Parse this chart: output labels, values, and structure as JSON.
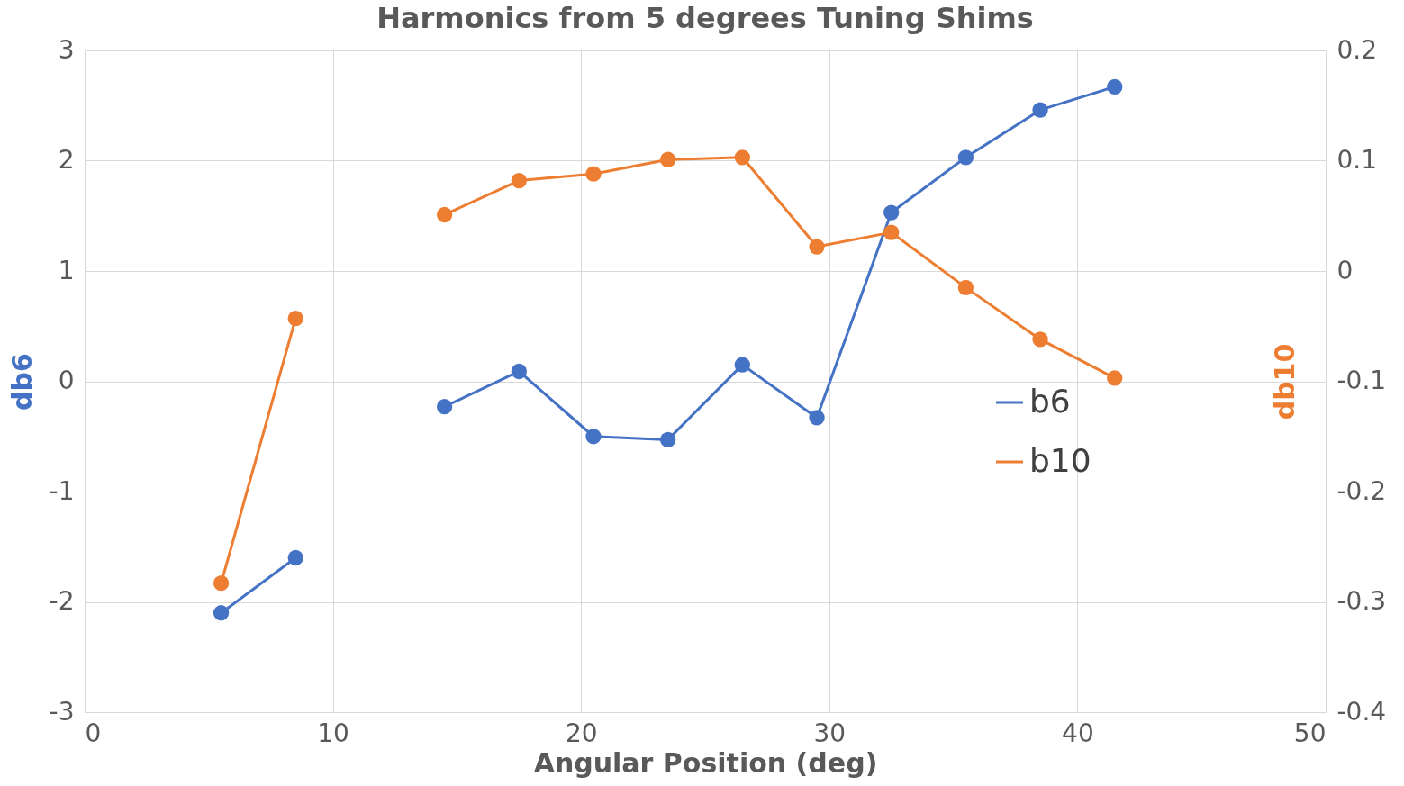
{
  "chart_data": {
    "type": "line",
    "title": "Harmonics from 5 degrees Tuning Shims",
    "xlabel": "Angular Position (deg)",
    "ylabel": "db6",
    "y2label": "db10",
    "x": [
      5.5,
      8.5,
      11.5,
      14.5,
      17.5,
      20.5,
      23.5,
      26.5,
      29.5,
      32.5,
      35.5,
      38.5,
      41.5
    ],
    "series": [
      {
        "name": "b6",
        "color": "#4472c4",
        "values": [
          -2.1,
          -1.6,
          null,
          -0.23,
          0.09,
          -0.5,
          -0.53,
          0.15,
          -0.33,
          1.53,
          2.03,
          2.46,
          2.67
        ]
      },
      {
        "name": "b10",
        "color": "#ed7d31",
        "axis": "y2",
        "values": [
          -0.283,
          -0.043,
          null,
          0.051,
          0.082,
          0.088,
          0.101,
          0.103,
          0.022,
          0.035,
          -0.015,
          -0.062,
          -0.097
        ]
      }
    ],
    "xlim": [
      0,
      50
    ],
    "xticks": [
      0,
      10,
      20,
      30,
      40,
      50
    ],
    "ylim": [
      -3,
      3
    ],
    "yticks": [
      -3,
      -2,
      -1,
      0,
      1,
      2,
      3
    ],
    "y2lim": [
      -0.4,
      0.2
    ],
    "y2ticks": [
      -0.4,
      -0.3,
      -0.2,
      -0.1,
      0,
      0.1,
      0.2
    ],
    "grid": true,
    "legend": "bottom right",
    "marker": "circle",
    "line_style": "solid"
  }
}
